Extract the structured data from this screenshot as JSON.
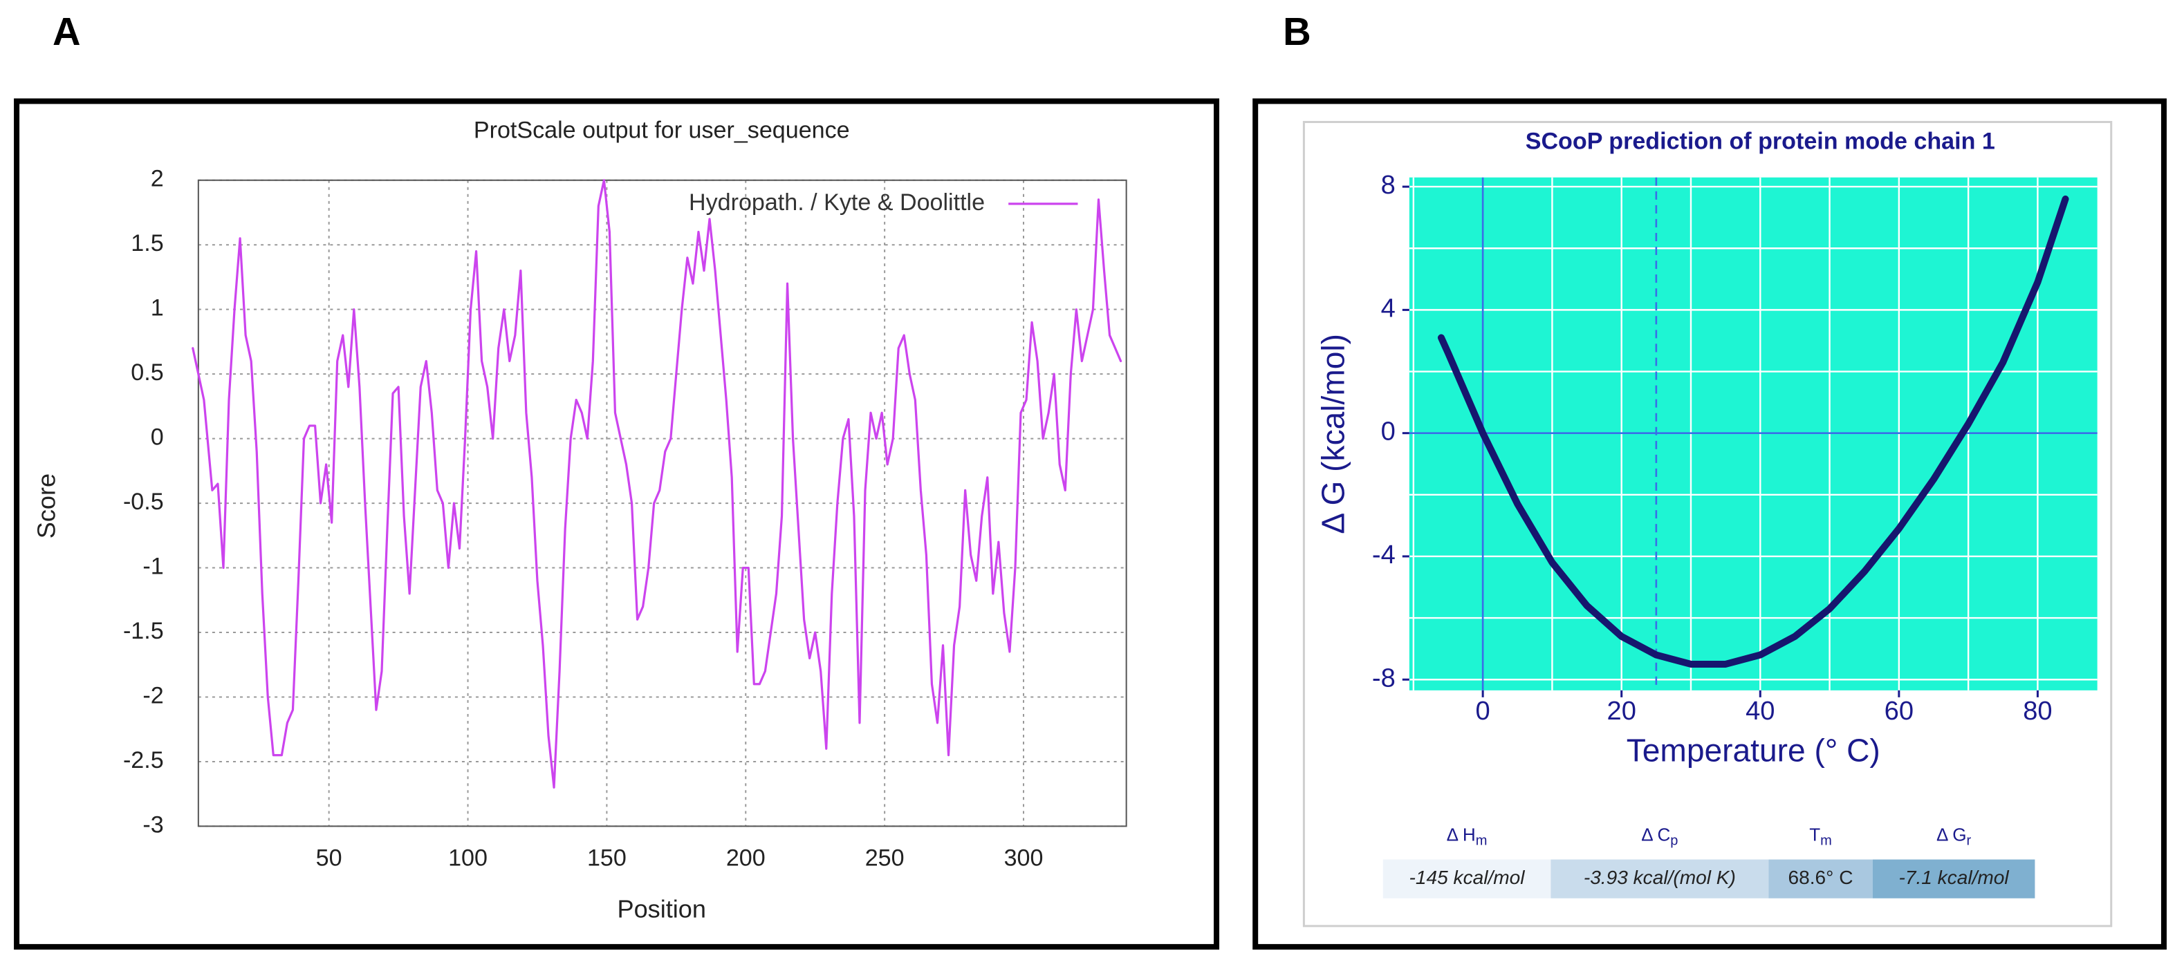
{
  "chart_data": [
    {
      "type": "line",
      "panel_label": "A",
      "title": "ProtScale output for user_sequence",
      "xlabel": "Position",
      "ylabel": "Score",
      "x": [
        1,
        5,
        8,
        10,
        12,
        14,
        16,
        18,
        20,
        22,
        24,
        26,
        28,
        30,
        33,
        35,
        37,
        39,
        41,
        43,
        45,
        47,
        49,
        51,
        53,
        55,
        57,
        59,
        61,
        63,
        65,
        67,
        69,
        71,
        73,
        75,
        77,
        79,
        81,
        83,
        85,
        87,
        89,
        91,
        93,
        95,
        97,
        99,
        101,
        103,
        105,
        107,
        109,
        111,
        113,
        115,
        117,
        119,
        121,
        123,
        125,
        127,
        129,
        131,
        133,
        135,
        137,
        139,
        141,
        143,
        145,
        147,
        149,
        151,
        153,
        155,
        157,
        159,
        161,
        163,
        165,
        167,
        169,
        171,
        173,
        175,
        177,
        179,
        181,
        183,
        185,
        187,
        189,
        191,
        193,
        195,
        197,
        199,
        201,
        203,
        205,
        207,
        209,
        211,
        213,
        215,
        217,
        219,
        221,
        223,
        225,
        227,
        229,
        231,
        233,
        235,
        237,
        239,
        241,
        243,
        245,
        247,
        249,
        251,
        253,
        255,
        257,
        259,
        261,
        263,
        265,
        267,
        269,
        271,
        273,
        275,
        277,
        279,
        281,
        283,
        285,
        287,
        289,
        291,
        293,
        295,
        297,
        299,
        301,
        303,
        305,
        307,
        309,
        311,
        313,
        315,
        317,
        319,
        321,
        323,
        325,
        327,
        329,
        331,
        333,
        335
      ],
      "series": [
        {
          "name": "Hydropath. / Kyte & Doolittle",
          "color": "#cc44ee",
          "values": [
            0.7,
            0.3,
            -0.4,
            -0.35,
            -1.0,
            0.3,
            1.0,
            1.55,
            0.8,
            0.6,
            -0.1,
            -1.2,
            -2.0,
            -2.45,
            -2.45,
            -2.2,
            -2.1,
            -1.1,
            0.0,
            0.1,
            0.1,
            -0.5,
            -0.2,
            -0.65,
            0.6,
            0.8,
            0.4,
            1.0,
            0.4,
            -0.5,
            -1.3,
            -2.1,
            -1.8,
            -0.7,
            0.35,
            0.4,
            -0.6,
            -1.2,
            -0.4,
            0.4,
            0.6,
            0.2,
            -0.4,
            -0.5,
            -1.0,
            -0.5,
            -0.85,
            0.0,
            1.0,
            1.45,
            0.6,
            0.4,
            0.0,
            0.7,
            1.0,
            0.6,
            0.8,
            1.3,
            0.2,
            -0.3,
            -1.1,
            -1.6,
            -2.3,
            -2.7,
            -1.8,
            -0.7,
            0.0,
            0.3,
            0.2,
            0.0,
            0.6,
            1.8,
            2.0,
            1.6,
            0.2,
            0.0,
            -0.2,
            -0.5,
            -1.4,
            -1.3,
            -1.0,
            -0.5,
            -0.4,
            -0.1,
            0.0,
            0.5,
            1.0,
            1.4,
            1.2,
            1.6,
            1.3,
            1.7,
            1.3,
            0.8,
            0.3,
            -0.3,
            -1.65,
            -1.0,
            -1.0,
            -1.9,
            -1.9,
            -1.8,
            -1.5,
            -1.2,
            -0.6,
            1.2,
            0.0,
            -0.7,
            -1.4,
            -1.7,
            -1.5,
            -1.8,
            -2.4,
            -1.2,
            -0.5,
            0.0,
            0.15,
            -0.6,
            -2.2,
            -0.4,
            0.2,
            0.0,
            0.2,
            -0.2,
            0.0,
            0.7,
            0.8,
            0.5,
            0.3,
            -0.4,
            -0.9,
            -1.9,
            -2.2,
            -1.6,
            -2.45,
            -1.6,
            -1.3,
            -0.4,
            -0.9,
            -1.1,
            -0.6,
            -0.3,
            -1.2,
            -0.8,
            -1.35,
            -1.65,
            -1.0,
            0.2,
            0.3,
            0.9,
            0.6,
            0.0,
            0.2,
            0.5,
            -0.2,
            -0.4,
            0.5,
            1.0,
            0.6,
            0.8,
            1.0,
            1.85,
            1.3,
            0.8,
            0.7,
            0.6
          ]
        }
      ],
      "xlim": [
        3,
        337
      ],
      "ylim": [
        -3,
        2
      ],
      "xticks": [
        50,
        100,
        150,
        200,
        250,
        300
      ],
      "yticks": [
        -3,
        -2.5,
        -2,
        -1.5,
        -1,
        -0.5,
        0,
        0.5,
        1,
        1.5,
        2
      ],
      "grid": true,
      "grid_style": "dashed",
      "legend": "upper right"
    },
    {
      "type": "line",
      "panel_label": "B",
      "title": "SCooP prediction of protein mode  chain  1",
      "xlabel": "Temperature (° C)",
      "ylabel": "Δ G (kcal/mol)",
      "x": [
        -6,
        -5,
        0,
        5,
        10,
        15,
        20,
        25,
        30,
        35,
        40,
        45,
        50,
        55,
        60,
        65,
        70,
        75,
        80,
        84
      ],
      "series": [
        {
          "color": "#16166e",
          "values": [
            3.1,
            2.6,
            0.0,
            -2.3,
            -4.2,
            -5.6,
            -6.6,
            -7.2,
            -7.5,
            -7.5,
            -7.2,
            -6.6,
            -5.7,
            -4.5,
            -3.1,
            -1.5,
            0.3,
            2.3,
            4.9,
            7.6
          ]
        }
      ],
      "xlim": [
        -10.6,
        88.6
      ],
      "ylim": [
        -8.35,
        8.3
      ],
      "xticks": [
        0,
        20,
        40,
        60,
        80
      ],
      "yticks": [
        -8,
        -4,
        0,
        4,
        8
      ],
      "minor_xticks": [
        -10,
        10,
        30,
        50,
        70
      ],
      "minor_yticks": [
        -6,
        -2,
        2,
        6
      ],
      "grid": true,
      "background": "#1ef5d3",
      "grid_color": "#ffffff",
      "ref_lines": [
        {
          "axis": "x",
          "value": 0,
          "dashed": false
        },
        {
          "axis": "x",
          "value": 25,
          "dashed": true
        },
        {
          "axis": "y",
          "value": 0,
          "dashed": false
        }
      ],
      "ref_color": "#3a6ee8",
      "table": {
        "headers": [
          {
            "text": "Δ H",
            "sub": "m"
          },
          {
            "text": "Δ C",
            "sub": "p"
          },
          {
            "text": "T",
            "sub": "m"
          },
          {
            "text": "Δ G",
            "sub": "r"
          }
        ],
        "values": [
          "-145 kcal/mol",
          "-3.93 kcal/(mol K)",
          "68.6° C",
          "-7.1 kcal/mol"
        ],
        "colors": [
          "#eef4fa",
          "#c9dcec",
          "#a9c8e0",
          "#7fb0d0"
        ]
      }
    }
  ]
}
